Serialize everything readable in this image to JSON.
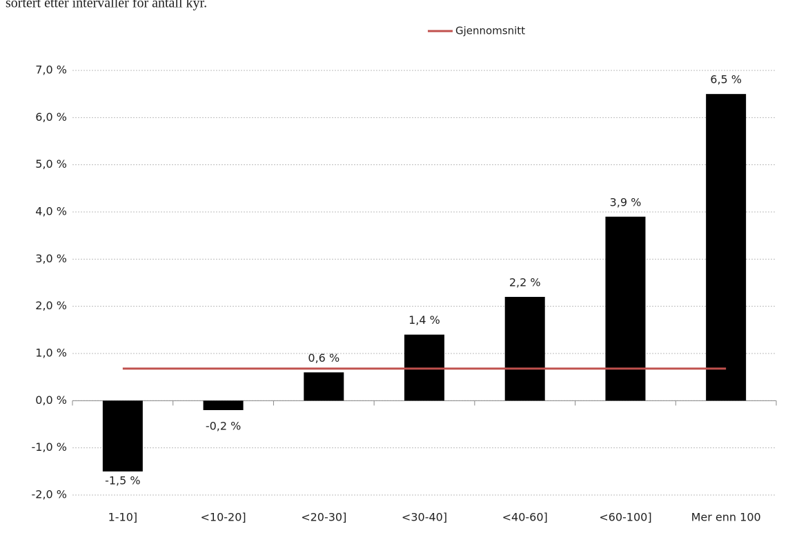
{
  "chart_data": {
    "type": "bar",
    "subtitle": "sortert etter intervaller for antall kyr.",
    "categories": [
      "1-10]",
      "<10-20]",
      "<20-30]",
      "<30-40]",
      "<40-60]",
      "<60-100]",
      "Mer enn 100"
    ],
    "values": [
      -1.5,
      -0.2,
      0.6,
      1.4,
      2.2,
      3.9,
      6.5
    ],
    "value_labels": [
      "-1,5 %",
      "-0,2 %",
      "0,6 %",
      "1,4 %",
      "2,2 %",
      "3,9 %",
      "6,5 %"
    ],
    "color": "#000000",
    "series": [
      {
        "name": "Gjennomsnitt",
        "color": "#c0504d",
        "values": [
          0.68,
          0.68,
          0.68,
          0.68,
          0.68,
          0.68,
          0.68
        ]
      }
    ],
    "ylim": [
      -2,
      7
    ],
    "yticks": [
      {
        "value": -2,
        "label": "-2,0 %"
      },
      {
        "value": -1,
        "label": "-1,0 %"
      },
      {
        "value": 0,
        "label": "0,0 %"
      },
      {
        "value": 1,
        "label": "1,0 %"
      },
      {
        "value": 2,
        "label": "2,0 %"
      },
      {
        "value": 3,
        "label": "3,0 %"
      },
      {
        "value": 4,
        "label": "4,0 %"
      },
      {
        "value": 5,
        "label": "5,0 %"
      },
      {
        "value": 6,
        "label": "6,0 %"
      },
      {
        "value": 7,
        "label": "7,0 %"
      }
    ],
    "grid": true,
    "legend": "top"
  }
}
